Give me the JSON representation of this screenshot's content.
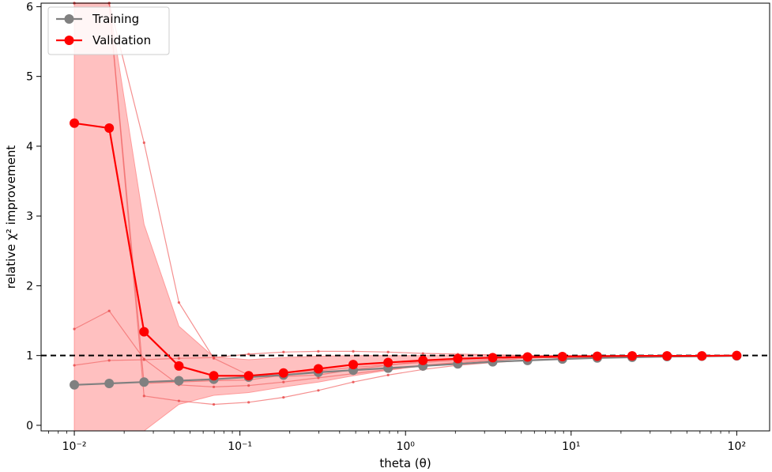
{
  "chart_data": {
    "type": "line",
    "xscale": "log",
    "xlim": [
      0.0063,
      158
    ],
    "ylim": [
      -0.08,
      6.05
    ],
    "xlabel": "theta (θ)",
    "ylabel": "relative χ² improvement",
    "x_tick_values": [
      0.01,
      0.1,
      1,
      10,
      100
    ],
    "x_tick_labels": [
      "10⁻²",
      "10⁻¹",
      "10⁰",
      "10¹",
      "10²"
    ],
    "y_tick_values": [
      0,
      1,
      2,
      3,
      4,
      5,
      6
    ],
    "y_tick_labels": [
      "0",
      "1",
      "2",
      "3",
      "4",
      "5",
      "6"
    ],
    "reference_line": {
      "y": 1,
      "style": "dashed",
      "color": "#000000"
    },
    "legend": {
      "location": "top-left",
      "entries": [
        "Training",
        "Validation"
      ]
    },
    "x": [
      0.01,
      0.01624,
      0.02637,
      0.04281,
      0.06952,
      0.1129,
      0.1833,
      0.2976,
      0.4833,
      0.7848,
      1.274,
      2.069,
      3.36,
      5.456,
      8.859,
      14.38,
      23.36,
      37.93,
      61.58,
      100
    ],
    "series": [
      {
        "name": "Training",
        "color": "#808080",
        "values": [
          0.58,
          0.6,
          0.62,
          0.64,
          0.66,
          0.69,
          0.72,
          0.76,
          0.79,
          0.82,
          0.85,
          0.88,
          0.91,
          0.93,
          0.95,
          0.965,
          0.975,
          0.985,
          0.99,
          0.995
        ]
      },
      {
        "name": "Validation",
        "color": "#ff0000",
        "values": [
          4.33,
          4.26,
          1.34,
          0.85,
          0.71,
          0.71,
          0.75,
          0.81,
          0.87,
          0.9,
          0.93,
          0.955,
          0.97,
          0.98,
          0.985,
          0.99,
          0.995,
          0.995,
          0.995,
          1.0
        ],
        "band_upper": [
          6.05,
          6.05,
          2.88,
          1.42,
          0.98,
          0.94,
          0.97,
          0.99,
          1.0,
          1.0,
          1.0,
          1.0,
          1.0,
          1.0,
          1.0,
          1.0,
          1.0,
          1.0,
          1.0,
          1.0
        ],
        "band_lower": [
          -0.08,
          -0.08,
          -0.08,
          0.3,
          0.43,
          0.47,
          0.55,
          0.62,
          0.71,
          0.79,
          0.85,
          0.9,
          0.93,
          0.96,
          0.975,
          0.985,
          0.99,
          0.99,
          0.995,
          0.995
        ]
      }
    ],
    "folds": [
      {
        "values": [
          1.38,
          1.64,
          0.95,
          0.58,
          0.55,
          0.57,
          0.62,
          0.68,
          0.74,
          0.8,
          0.86,
          0.9,
          0.93,
          0.96,
          0.975,
          0.985,
          0.99,
          0.995,
          0.995,
          1.0
        ]
      },
      {
        "values": [
          0.86,
          0.93,
          0.94,
          0.96,
          0.97,
          1.02,
          1.05,
          1.06,
          1.06,
          1.05,
          1.03,
          1.02,
          1.01,
          1.0,
          1.0,
          1.0,
          1.0,
          1.0,
          1.0,
          1.0
        ]
      },
      {
        "values": [
          6.05,
          6.05,
          0.42,
          0.35,
          0.3,
          0.33,
          0.4,
          0.5,
          0.62,
          0.72,
          0.8,
          0.86,
          0.9,
          0.93,
          0.96,
          0.975,
          0.985,
          0.99,
          0.995,
          1.0
        ]
      },
      {
        "values": [
          6.05,
          6.05,
          4.05,
          1.76,
          0.96,
          0.72,
          0.7,
          0.72,
          0.8,
          0.86,
          0.92,
          0.95,
          0.97,
          0.98,
          0.99,
          0.99,
          0.995,
          0.995,
          1.0,
          1.0
        ]
      },
      {
        "values": [
          6.05,
          6.05,
          0.6,
          0.62,
          0.64,
          0.65,
          0.72,
          0.78,
          0.83,
          0.87,
          0.9,
          0.93,
          0.95,
          0.97,
          0.98,
          0.985,
          0.99,
          0.995,
          1.0,
          1.0
        ]
      }
    ]
  }
}
